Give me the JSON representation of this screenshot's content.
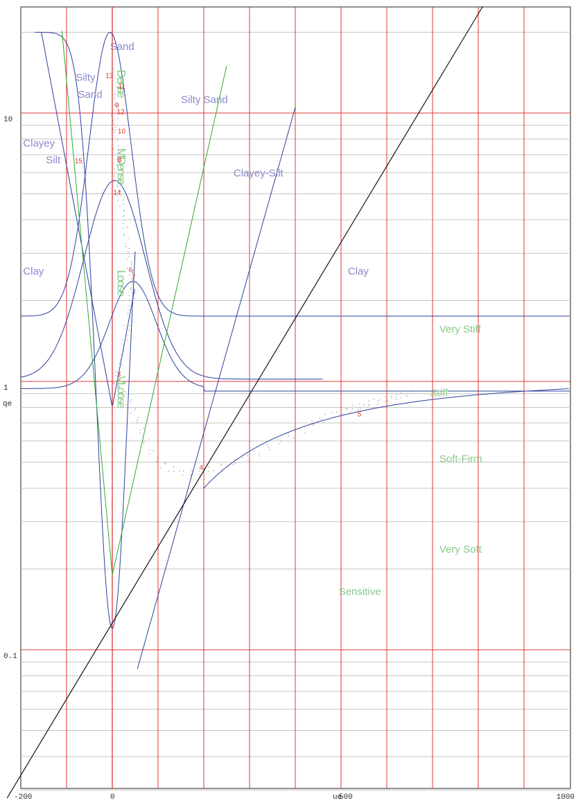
{
  "chart_data": {
    "type": "scatter",
    "x_scale": "linear",
    "y_scale": "log",
    "xlabel": "ue",
    "ylabel": "qe",
    "xlim": [
      -200,
      1000
    ],
    "ylim": [
      0.03,
      20
    ],
    "x_ticks": [
      {
        "value": -200,
        "label": "-200"
      },
      {
        "value": 0,
        "label": "0"
      },
      {
        "value": 500,
        "label": "500"
      },
      {
        "value": 1000,
        "label": "1000"
      }
    ],
    "y_ticks": [
      {
        "value": 10,
        "label": "10"
      },
      {
        "value": 1,
        "label": "1"
      },
      {
        "value": 0.1,
        "label": "0.1"
      }
    ],
    "x_grid": [
      -100,
      0,
      100,
      200,
      300,
      400,
      500,
      600,
      700,
      800,
      900
    ],
    "major_y_grid": [
      10,
      1,
      0.1
    ],
    "colors": {
      "grid_red": "#e03535",
      "grid_gray": "#c4c4c4",
      "boundary_blue": "#2a3f9a",
      "boundary_green": "#2ea82e",
      "label_blue": "#8888cc",
      "label_green": "#88c888",
      "trend_line": "#111111",
      "data_gray": "#9a9a9a",
      "point_label": "#e03030"
    },
    "soil_type_labels": [
      {
        "text": "Sand",
        "x": -5,
        "y": 17.2
      },
      {
        "text": "Silty",
        "x": -80,
        "y": 13.2
      },
      {
        "text": "Sand",
        "x": -75,
        "y": 11.4
      },
      {
        "text": "Silty Sand",
        "x": 150,
        "y": 10.9
      },
      {
        "text": "Clayey",
        "x": -195,
        "y": 7.5
      },
      {
        "text": "Silt",
        "x": -145,
        "y": 6.5
      },
      {
        "text": "Clayey-Silt",
        "x": 265,
        "y": 5.8
      },
      {
        "text": "Clay",
        "x": -195,
        "y": 2.5
      },
      {
        "text": "Clay",
        "x": 515,
        "y": 2.5
      }
    ],
    "consistency_labels": [
      {
        "text": "Very Stiff",
        "x": 715,
        "y": 1.52
      },
      {
        "text": "Stiff",
        "x": 695,
        "y": 0.88
      },
      {
        "text": "Soft-Firm",
        "x": 715,
        "y": 0.5
      },
      {
        "text": "Very Soft",
        "x": 715,
        "y": 0.23
      },
      {
        "text": "Sensitive",
        "x": 495,
        "y": 0.16
      }
    ],
    "density_labels": [
      {
        "text": "Dense",
        "x": 20,
        "y": 14.5
      },
      {
        "text": "MDense",
        "x": 20,
        "y": 7.4
      },
      {
        "text": "Loose",
        "x": 20,
        "y": 2.6
      },
      {
        "text": "VLoose",
        "x": 20,
        "y": 1.05
      }
    ],
    "point_labels": [
      {
        "text": "13",
        "x": -15,
        "y": 13.5
      },
      {
        "text": "11",
        "x": 13,
        "y": 12.3
      },
      {
        "text": "9",
        "x": 6,
        "y": 10.5
      },
      {
        "text": "12",
        "x": 10,
        "y": 9.9
      },
      {
        "text": "10",
        "x": 12,
        "y": 8.4
      },
      {
        "text": "15",
        "x": -82,
        "y": 6.5
      },
      {
        "text": "8",
        "x": 12,
        "y": 6.55
      },
      {
        "text": "14",
        "x": 2,
        "y": 4.95
      },
      {
        "text": "6",
        "x": 36,
        "y": 2.55
      },
      {
        "text": "7",
        "x": 42,
        "y": 2.4
      },
      {
        "text": "3",
        "x": 10,
        "y": 1.04
      },
      {
        "text": "4",
        "x": 190,
        "y": 0.468
      },
      {
        "text": "5",
        "x": 536,
        "y": 0.74
      }
    ],
    "trend_line": {
      "x": [
        -230,
        810
      ],
      "y": [
        0.028,
        25
      ]
    },
    "series": [
      {
        "role": "depth-profile",
        "points": [
          [
            0,
            14.5
          ],
          [
            3,
            13.2
          ],
          [
            4,
            12.4
          ],
          [
            1,
            11.5
          ],
          [
            5,
            10.6
          ],
          [
            3,
            10.0
          ],
          [
            6,
            9.4
          ],
          [
            4,
            8.9
          ],
          [
            2,
            8.5
          ],
          [
            5,
            7.9
          ],
          [
            7,
            7.4
          ],
          [
            9,
            6.9
          ],
          [
            12,
            6.5
          ],
          [
            10,
            6.1
          ],
          [
            8,
            5.7
          ],
          [
            11,
            5.3
          ],
          [
            14,
            5.0
          ],
          [
            17,
            4.7
          ],
          [
            20,
            4.4
          ],
          [
            24,
            4.1
          ],
          [
            27,
            3.8
          ],
          [
            30,
            3.5
          ],
          [
            32,
            3.2
          ],
          [
            34,
            3.0
          ],
          [
            36,
            2.8
          ],
          [
            38,
            2.6
          ],
          [
            40,
            2.5
          ],
          [
            43,
            2.35
          ],
          [
            45,
            2.2
          ],
          [
            42,
            2.05
          ],
          [
            38,
            1.9
          ],
          [
            35,
            1.75
          ],
          [
            31,
            1.6
          ],
          [
            27,
            1.45
          ],
          [
            22,
            1.3
          ],
          [
            18,
            1.18
          ],
          [
            12,
            1.08
          ],
          [
            8,
            1.0
          ],
          [
            14,
            0.95
          ],
          [
            24,
            0.9
          ],
          [
            34,
            0.84
          ],
          [
            44,
            0.78
          ],
          [
            54,
            0.72
          ],
          [
            64,
            0.66
          ],
          [
            74,
            0.6
          ],
          [
            84,
            0.55
          ],
          [
            96,
            0.51
          ],
          [
            110,
            0.49
          ],
          [
            128,
            0.47
          ],
          [
            150,
            0.46
          ],
          [
            172,
            0.455
          ],
          [
            195,
            0.46
          ],
          [
            215,
            0.47
          ],
          [
            240,
            0.485
          ],
          [
            265,
            0.5
          ],
          [
            290,
            0.52
          ],
          [
            315,
            0.54
          ],
          [
            340,
            0.57
          ],
          [
            365,
            0.6
          ],
          [
            390,
            0.63
          ],
          [
            415,
            0.66
          ],
          [
            438,
            0.7
          ],
          [
            455,
            0.72
          ],
          [
            470,
            0.74
          ],
          [
            485,
            0.76
          ],
          [
            500,
            0.77
          ],
          [
            515,
            0.785
          ],
          [
            530,
            0.8
          ],
          [
            545,
            0.815
          ],
          [
            560,
            0.83
          ],
          [
            575,
            0.845
          ],
          [
            590,
            0.86
          ],
          [
            605,
            0.87
          ],
          [
            620,
            0.88
          ],
          [
            635,
            0.89
          ],
          [
            650,
            0.9
          ]
        ]
      }
    ]
  }
}
